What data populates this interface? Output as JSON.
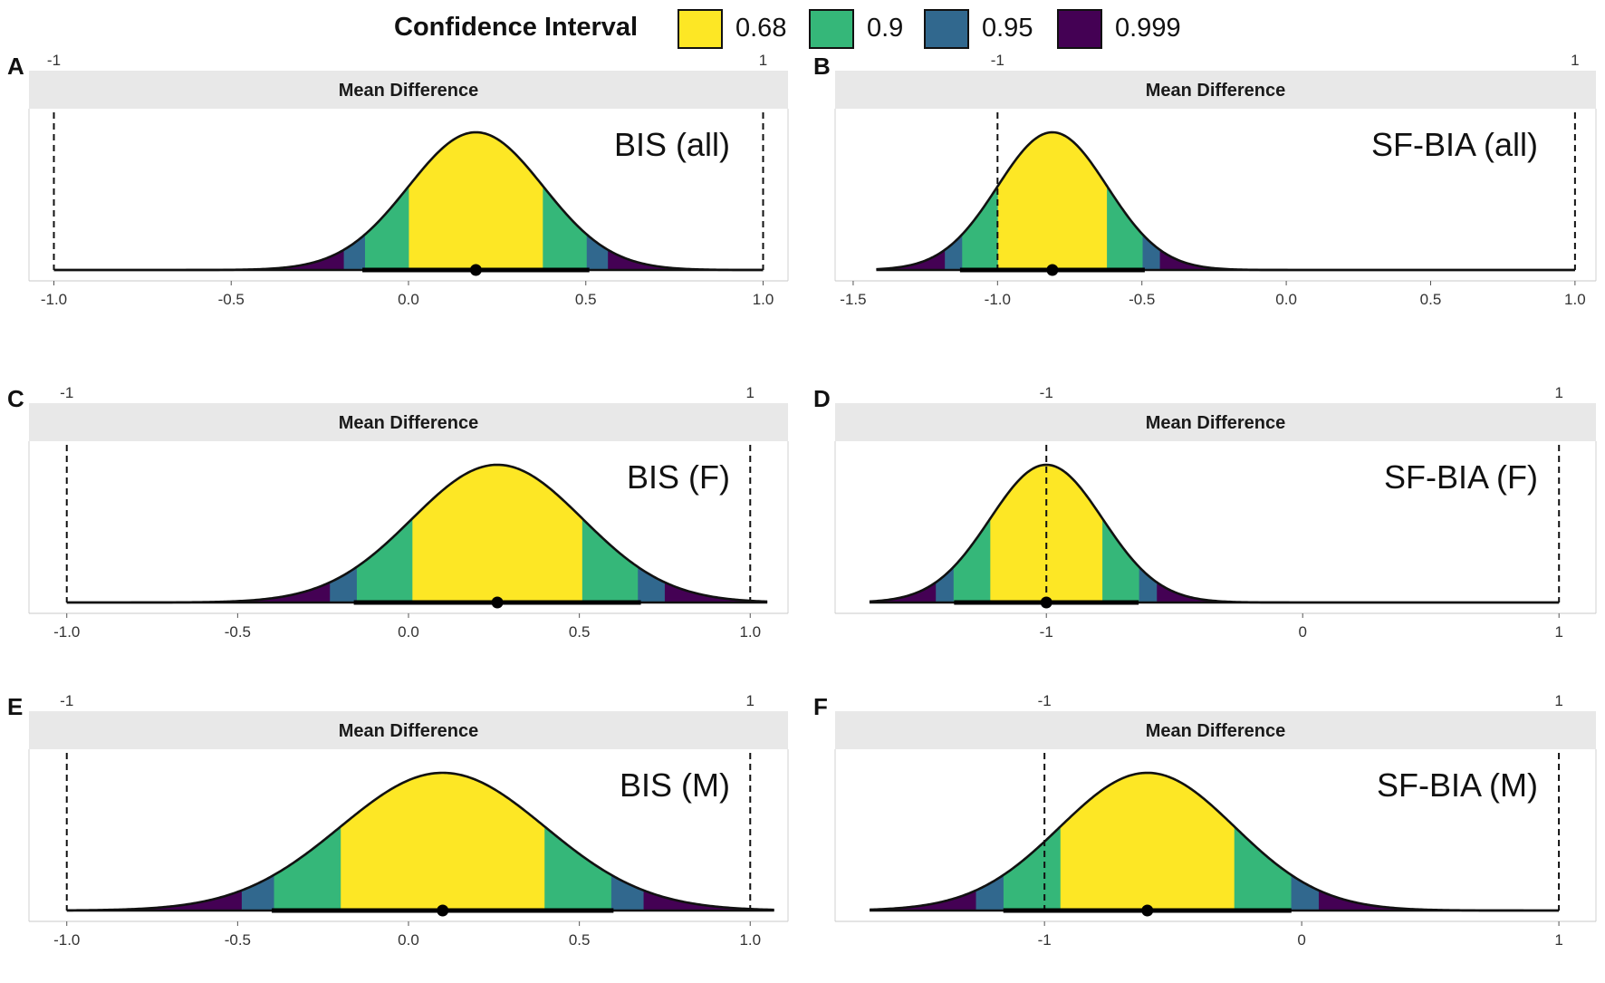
{
  "legend": {
    "title": "Confidence Interval",
    "items": [
      {
        "label": "0.68",
        "color": "#FDE725"
      },
      {
        "label": "0.9",
        "color": "#35B779"
      },
      {
        "label": "0.95",
        "color": "#31688E"
      },
      {
        "label": "0.999",
        "color": "#440154"
      }
    ]
  },
  "chart_data": [
    {
      "panel": "A",
      "type": "area",
      "strip_label": "Mean Difference",
      "annotation": "BIS (all)",
      "mean": 0.19,
      "sd": 0.19,
      "xlim": [
        -1.06,
        1.06
      ],
      "curve_range": [
        -1.0,
        1.0
      ],
      "x_ticks": [
        "-1.0",
        "-0.5",
        "0.0",
        "0.5",
        "1.0"
      ],
      "x_tick_values": [
        -1.0,
        -0.5,
        0.0,
        0.5,
        1.0
      ],
      "top_ticks": [
        "-1",
        "1"
      ],
      "top_tick_values": [
        -1,
        1
      ],
      "ref_lines": [
        -1,
        1
      ],
      "interval": [
        -0.13,
        0.51
      ]
    },
    {
      "panel": "B",
      "type": "area",
      "strip_label": "Mean Difference",
      "annotation": "SF-BIA (all)",
      "mean": -0.81,
      "sd": 0.19,
      "xlim": [
        -1.55,
        1.06
      ],
      "curve_range": [
        -1.42,
        1.0
      ],
      "x_ticks": [
        "-1.5",
        "-1.0",
        "-0.5",
        "0.0",
        "0.5",
        "1.0"
      ],
      "x_tick_values": [
        -1.5,
        -1.0,
        -0.5,
        0.0,
        0.5,
        1.0
      ],
      "top_ticks": [
        "-1",
        "1"
      ],
      "top_tick_values": [
        -1,
        1
      ],
      "ref_lines": [
        -1,
        1
      ],
      "interval": [
        -1.13,
        -0.49
      ]
    },
    {
      "panel": "C",
      "type": "area",
      "strip_label": "Mean Difference",
      "annotation": "BIS (F)",
      "mean": 0.26,
      "sd": 0.25,
      "xlim": [
        -1.1,
        1.1
      ],
      "curve_range": [
        -1.0,
        1.05
      ],
      "x_ticks": [
        "-1.0",
        "-0.5",
        "0.0",
        "0.5",
        "1.0"
      ],
      "x_tick_values": [
        -1.0,
        -0.5,
        0.0,
        0.5,
        1.0
      ],
      "top_ticks": [
        "-1",
        "1"
      ],
      "top_tick_values": [
        -1,
        1
      ],
      "ref_lines": [
        -1,
        1
      ],
      "interval": [
        -0.16,
        0.68
      ]
    },
    {
      "panel": "D",
      "type": "area",
      "strip_label": "Mean Difference",
      "annotation": "SF-BIA (F)",
      "mean": -1.0,
      "sd": 0.22,
      "xlim": [
        -1.81,
        1.13
      ],
      "curve_range": [
        -1.69,
        1.0
      ],
      "x_ticks": [
        "-1",
        "0",
        "1"
      ],
      "x_tick_values": [
        -1,
        0,
        1
      ],
      "top_ticks": [
        "-1",
        "1"
      ],
      "top_tick_values": [
        -1,
        1
      ],
      "ref_lines": [
        -1,
        1
      ],
      "interval": [
        -1.36,
        -0.64
      ]
    },
    {
      "panel": "E",
      "type": "area",
      "strip_label": "Mean Difference",
      "annotation": "BIS (M)",
      "mean": 0.1,
      "sd": 0.3,
      "xlim": [
        -1.1,
        1.1
      ],
      "curve_range": [
        -1.0,
        1.07
      ],
      "x_ticks": [
        "-1.0",
        "-0.5",
        "0.0",
        "0.5",
        "1.0"
      ],
      "x_tick_values": [
        -1.0,
        -0.5,
        0.0,
        0.5,
        1.0
      ],
      "top_ticks": [
        "-1",
        "1"
      ],
      "top_tick_values": [
        -1,
        1
      ],
      "ref_lines": [
        -1,
        1
      ],
      "interval": [
        -0.4,
        0.6
      ]
    },
    {
      "panel": "F",
      "type": "area",
      "strip_label": "Mean Difference",
      "annotation": "SF-BIA (M)",
      "mean": -0.6,
      "sd": 0.34,
      "xlim": [
        -1.8,
        1.13
      ],
      "curve_range": [
        -1.68,
        1.0
      ],
      "x_ticks": [
        "-1",
        "0",
        "1"
      ],
      "x_tick_values": [
        -1,
        0,
        1
      ],
      "top_ticks": [
        "-1",
        "1"
      ],
      "top_tick_values": [
        -1,
        1
      ],
      "ref_lines": [
        -1,
        1
      ],
      "interval": [
        -1.16,
        -0.04
      ]
    }
  ]
}
